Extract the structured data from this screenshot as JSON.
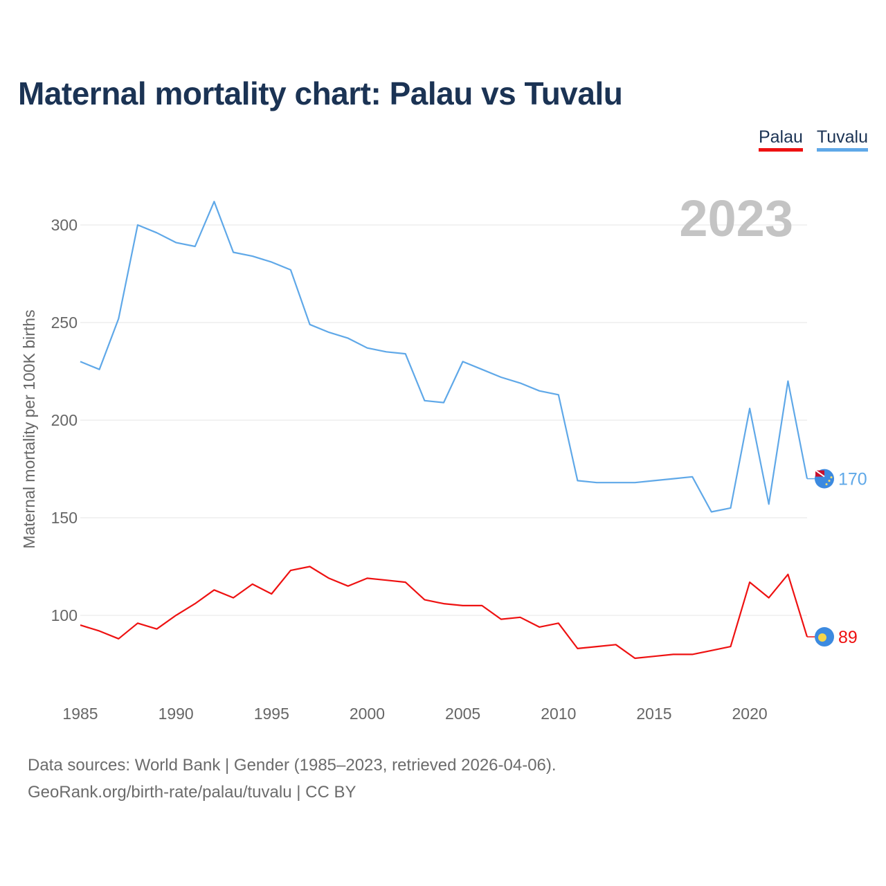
{
  "chart_data": {
    "type": "line",
    "title": "Maternal mortality chart: Palau vs Tuvalu",
    "ylabel": "Maternal mortality per 100K births",
    "xlabel": "",
    "year_label": "2023",
    "xlim": [
      1985,
      2023
    ],
    "ylim": [
      70,
      320
    ],
    "x_ticks": [
      1985,
      1990,
      1995,
      2000,
      2005,
      2010,
      2015,
      2020
    ],
    "y_ticks": [
      100,
      150,
      200,
      250,
      300
    ],
    "x": [
      1985,
      1986,
      1987,
      1988,
      1989,
      1990,
      1991,
      1992,
      1993,
      1994,
      1995,
      1996,
      1997,
      1998,
      1999,
      2000,
      2001,
      2002,
      2003,
      2004,
      2005,
      2006,
      2007,
      2008,
      2009,
      2010,
      2011,
      2012,
      2013,
      2014,
      2015,
      2016,
      2017,
      2018,
      2019,
      2020,
      2021,
      2022,
      2023
    ],
    "legend_position": "top-right",
    "series": [
      {
        "name": "Palau",
        "color": "#ee1111",
        "end_label": "89",
        "values": [
          95,
          92,
          88,
          96,
          93,
          100,
          106,
          113,
          109,
          116,
          111,
          123,
          125,
          119,
          115,
          119,
          118,
          117,
          108,
          106,
          105,
          105,
          98,
          99,
          94,
          96,
          83,
          84,
          85,
          78,
          79,
          80,
          80,
          82,
          84,
          117,
          109,
          121,
          89
        ]
      },
      {
        "name": "Tuvalu",
        "color": "#5fa8e8",
        "end_label": "170",
        "values": [
          230,
          226,
          252,
          300,
          296,
          291,
          289,
          312,
          286,
          284,
          281,
          277,
          249,
          245,
          242,
          237,
          235,
          234,
          210,
          209,
          230,
          226,
          222,
          219,
          215,
          213,
          169,
          168,
          168,
          168,
          169,
          170,
          171,
          153,
          155,
          206,
          157,
          220,
          170
        ]
      }
    ]
  },
  "footer": {
    "line1": "Data sources: World Bank | Gender (1985–2023, retrieved 2026-04-06).",
    "line2": "GeoRank.org/birth-rate/palau/tuvalu | CC BY"
  },
  "colors": {
    "title": "#1b3354",
    "grid": "#e6e6e6",
    "axis_text": "#666666",
    "year_watermark": "#c4c4c4"
  }
}
